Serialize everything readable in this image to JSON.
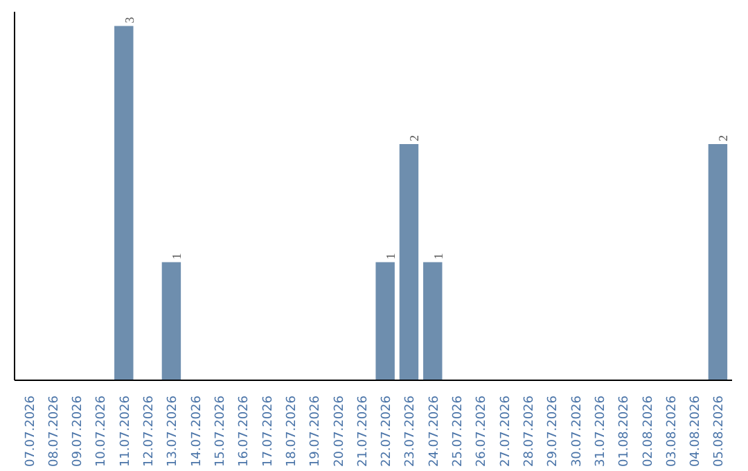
{
  "chart_data": {
    "type": "bar",
    "categories": [
      "07.07.2026",
      "08.07.2026",
      "09.07.2026",
      "10.07.2026",
      "11.07.2026",
      "12.07.2026",
      "13.07.2026",
      "14.07.2026",
      "15.07.2026",
      "16.07.2026",
      "17.07.2026",
      "18.07.2026",
      "19.07.2026",
      "20.07.2026",
      "21.07.2026",
      "22.07.2026",
      "23.07.2026",
      "24.07.2026",
      "25.07.2026",
      "26.07.2026",
      "27.07.2026",
      "28.07.2026",
      "29.07.2026",
      "30.07.2026",
      "31.07.2026",
      "01.08.2026",
      "02.08.2026",
      "03.08.2026",
      "04.08.2026",
      "05.08.2026"
    ],
    "values": [
      0,
      0,
      0,
      0,
      3,
      0,
      1,
      0,
      0,
      0,
      0,
      0,
      0,
      0,
      0,
      1,
      2,
      1,
      0,
      0,
      0,
      0,
      0,
      0,
      0,
      0,
      0,
      0,
      0,
      2
    ],
    "value_labels": [
      null,
      null,
      null,
      null,
      "3",
      null,
      "1",
      null,
      null,
      null,
      null,
      null,
      null,
      null,
      null,
      "1",
      "2",
      "1",
      null,
      null,
      null,
      null,
      null,
      null,
      null,
      null,
      null,
      null,
      null,
      "2"
    ],
    "color": "#6e8eae",
    "tick_labels": "x"
  }
}
